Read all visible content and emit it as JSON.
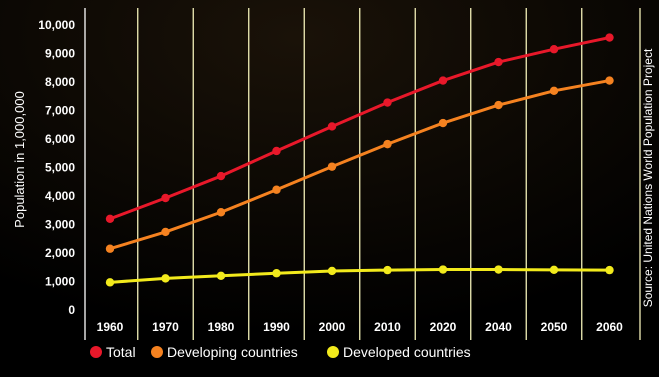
{
  "chart_data": {
    "type": "line",
    "title": "",
    "xlabel": "",
    "ylabel": "Population in 1,000,000",
    "source": "Source: United Nations World Population Project",
    "categories": [
      "1960",
      "1970",
      "1980",
      "1990",
      "2000",
      "2010",
      "2020",
      "2040",
      "2050",
      "2060"
    ],
    "ylim": [
      0,
      10000
    ],
    "yticks": [
      "0",
      "1,000",
      "2,000",
      "3,000",
      "4,000",
      "5,000",
      "6,000",
      "7,000",
      "8,000",
      "9,000",
      "10,000"
    ],
    "grid": "vertical",
    "legend_position": "bottom",
    "series": [
      {
        "name": "Total",
        "color": "#e8182a",
        "values": [
          3200,
          3930,
          4700,
          5580,
          6440,
          7280,
          8050,
          8700,
          9150,
          9560
        ]
      },
      {
        "name": "Developing countries",
        "color": "#f58220",
        "values": [
          2150,
          2740,
          3430,
          4220,
          5030,
          5820,
          6560,
          7190,
          7690,
          8050
        ]
      },
      {
        "name": "Developed countries",
        "color": "#f2ea1c",
        "values": [
          970,
          1110,
          1200,
          1290,
          1370,
          1400,
          1420,
          1420,
          1410,
          1400
        ]
      }
    ]
  }
}
